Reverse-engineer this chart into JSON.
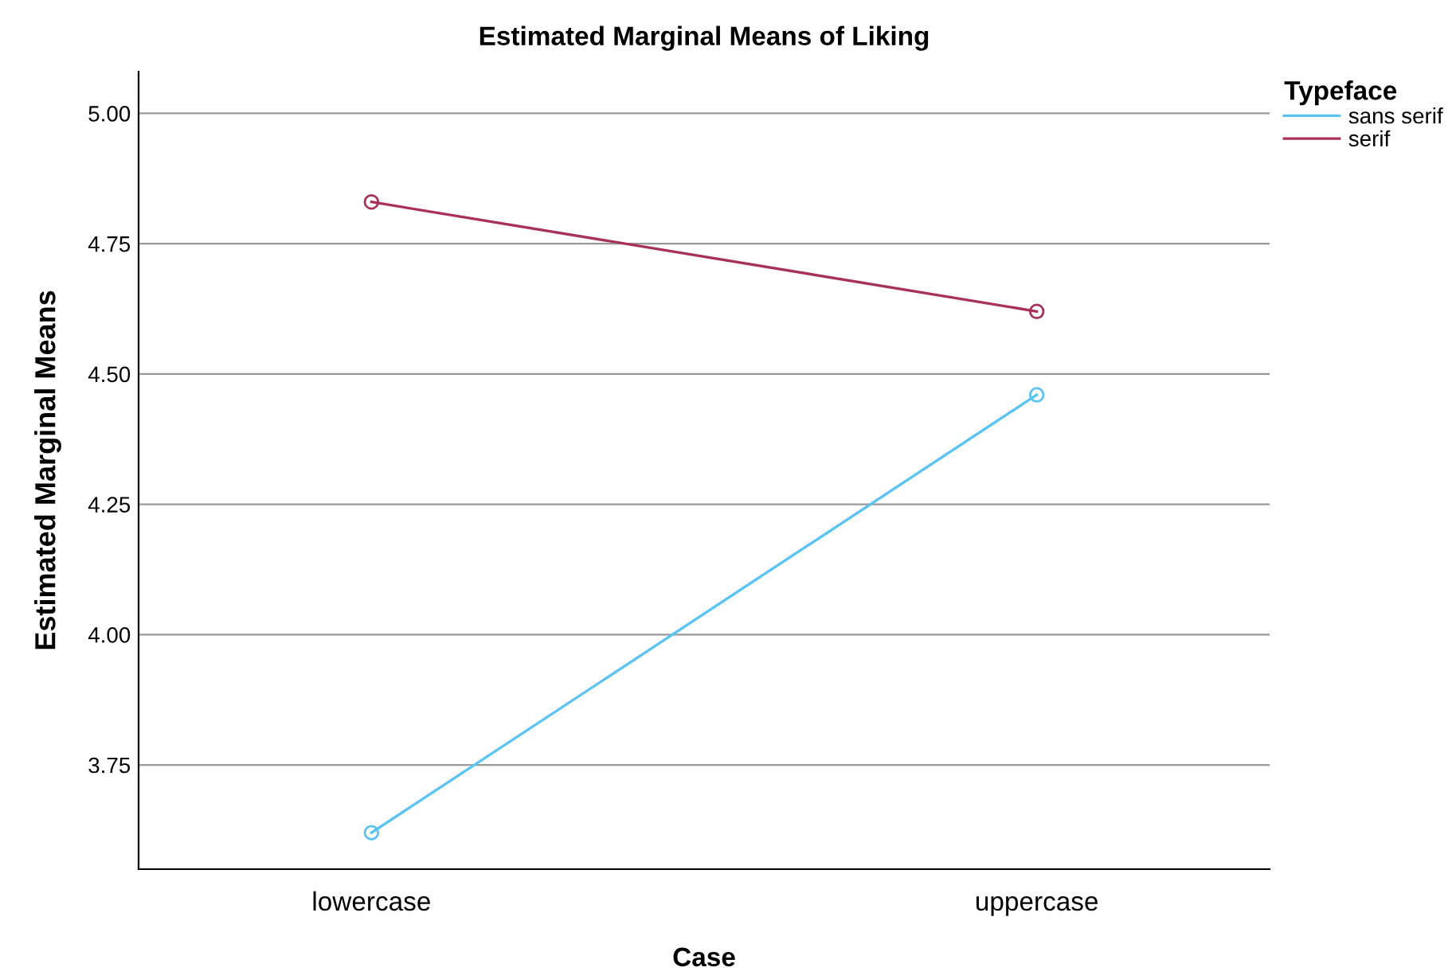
{
  "chart_data": {
    "type": "line",
    "title": "Estimated Marginal Means of Liking",
    "xlabel": "Case",
    "ylabel": "Estimated Marginal Means",
    "legend_title": "Typeface",
    "categories": [
      "lowercase",
      "uppercase"
    ],
    "series": [
      {
        "name": "sans serif",
        "color": "#5ac3f5",
        "values": [
          3.62,
          4.46
        ]
      },
      {
        "name": "serif",
        "color": "#a8305a",
        "values": [
          4.83,
          4.62
        ]
      }
    ],
    "ylim": [
      3.55,
      5.08
    ],
    "yticks": [
      {
        "value": 3.75,
        "label": "3.75"
      },
      {
        "value": 4.0,
        "label": "4.00"
      },
      {
        "value": 4.25,
        "label": "4.25"
      },
      {
        "value": 4.5,
        "label": "4.50"
      },
      {
        "value": 4.75,
        "label": "4.75"
      },
      {
        "value": 5.0,
        "label": "5.00"
      }
    ],
    "grid": "y",
    "legend": "top right",
    "marker": "circle",
    "line_style": "solid"
  }
}
